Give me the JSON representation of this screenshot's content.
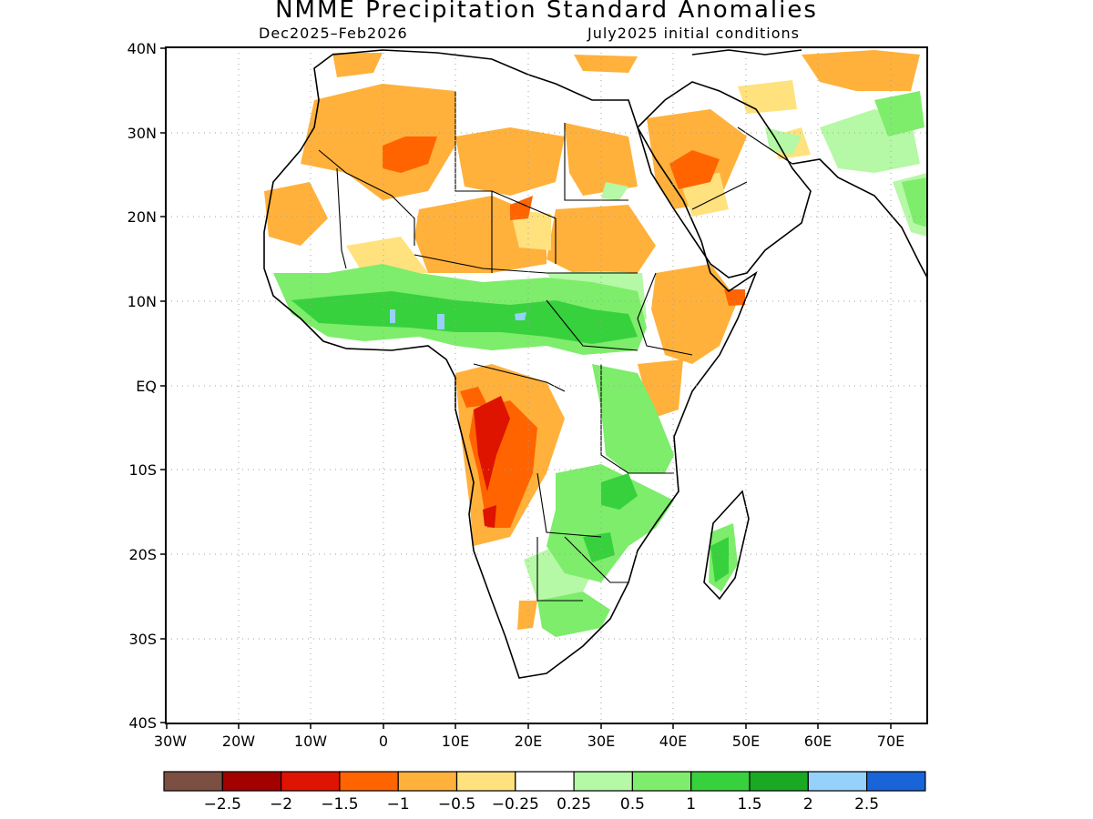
{
  "title": "NMME Precipitation Standard Anomalies",
  "period": "Dec2025–Feb2026",
  "initial_conditions": "July2025 initial conditions",
  "map": {
    "y_ticks": [
      "40N",
      "30N",
      "20N",
      "10N",
      "EQ",
      "10S",
      "20S",
      "30S",
      "40S"
    ],
    "x_ticks": [
      "30W",
      "20W",
      "10W",
      "0",
      "10E",
      "20E",
      "30E",
      "40E",
      "50E",
      "60E",
      "70E"
    ],
    "lon_range": [
      -30,
      75
    ],
    "lat_range": [
      -40,
      40
    ],
    "grid": true
  },
  "colorbar": {
    "colors": [
      "#7b5042",
      "#a30000",
      "#de1300",
      "#ff6400",
      "#ffb13b",
      "#ffe27e",
      "#ffffff",
      "#b5f8a5",
      "#7ded6b",
      "#37d13d",
      "#19a922",
      "#95d1fa",
      "#1964d8"
    ],
    "labels": [
      "−2.5",
      "−2",
      "−1.5",
      "−1",
      "−0.5",
      "−0.25",
      "0.25",
      "0.5",
      "1",
      "1.5",
      "2",
      "2.5"
    ]
  }
}
